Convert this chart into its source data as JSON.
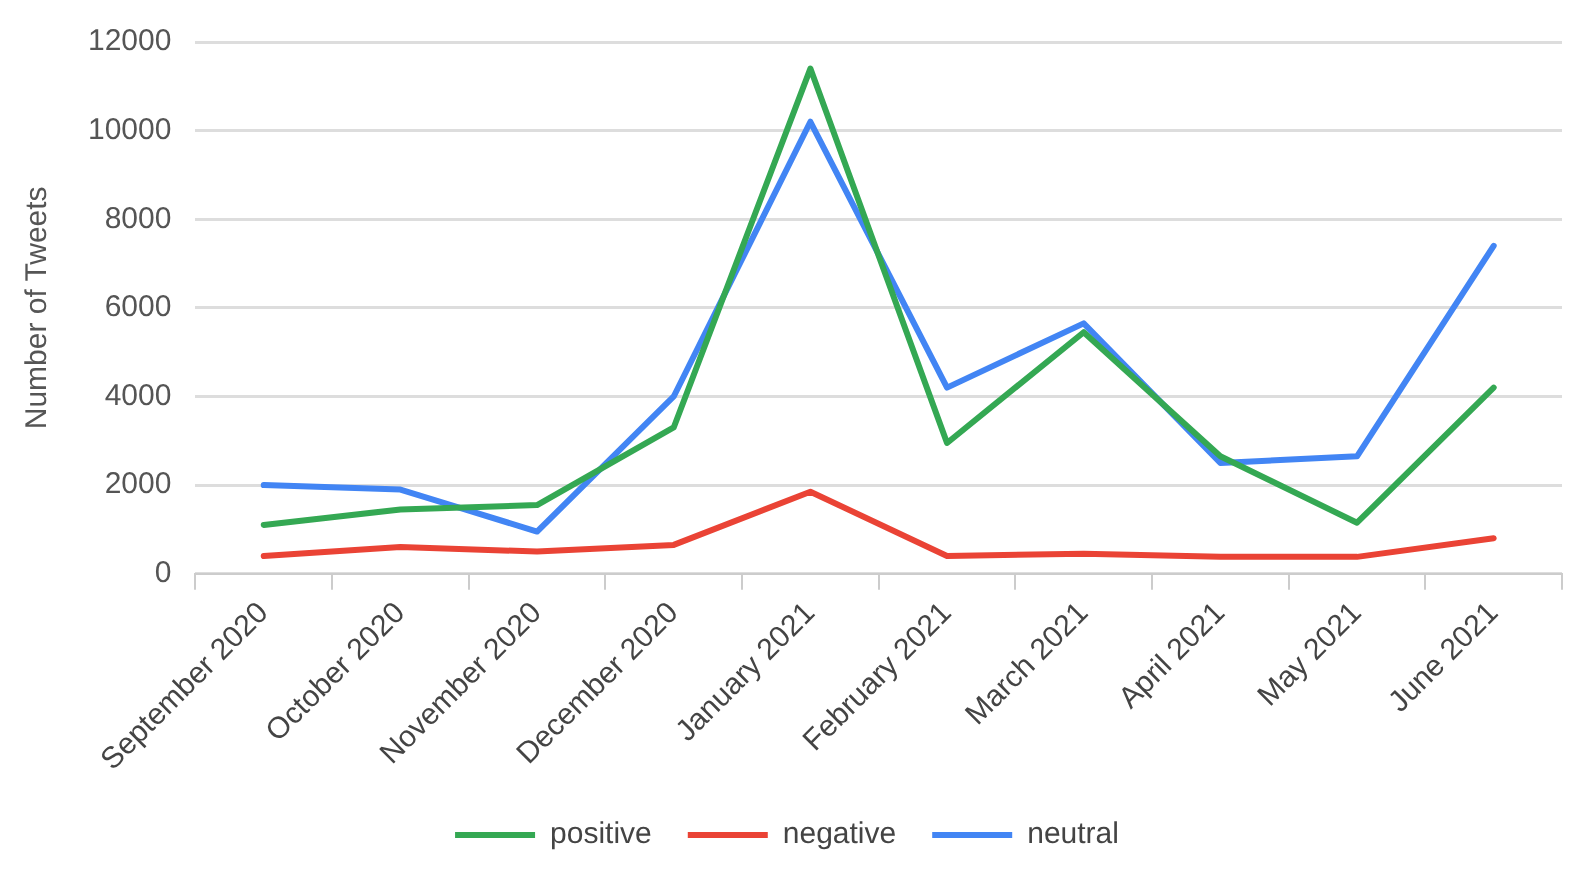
{
  "chart_data": {
    "type": "line",
    "ylabel": "Number of Tweets",
    "categories": [
      "September 2020",
      "October 2020",
      "November 2020",
      "December 2020",
      "January 2021",
      "February 2021",
      "March 2021",
      "April 2021",
      "May 2021",
      "June 2021"
    ],
    "series": [
      {
        "name": "positive",
        "color": "#34a853",
        "values": [
          1100,
          1450,
          1550,
          3300,
          11400,
          2950,
          5450,
          2650,
          1150,
          4200
        ]
      },
      {
        "name": "negative",
        "color": "#ea4335",
        "values": [
          400,
          600,
          500,
          650,
          1850,
          400,
          450,
          380,
          380,
          800
        ]
      },
      {
        "name": "neutral",
        "color": "#4285f4",
        "values": [
          2000,
          1900,
          950,
          4000,
          10200,
          4200,
          5650,
          2500,
          2650,
          7400
        ]
      }
    ],
    "ylim": [
      0,
      12000
    ],
    "yticks": [
      0,
      2000,
      4000,
      6000,
      8000,
      10000,
      12000
    ],
    "grid": "y",
    "legend": "bottom",
    "marker": "none",
    "line_style": "solid"
  }
}
